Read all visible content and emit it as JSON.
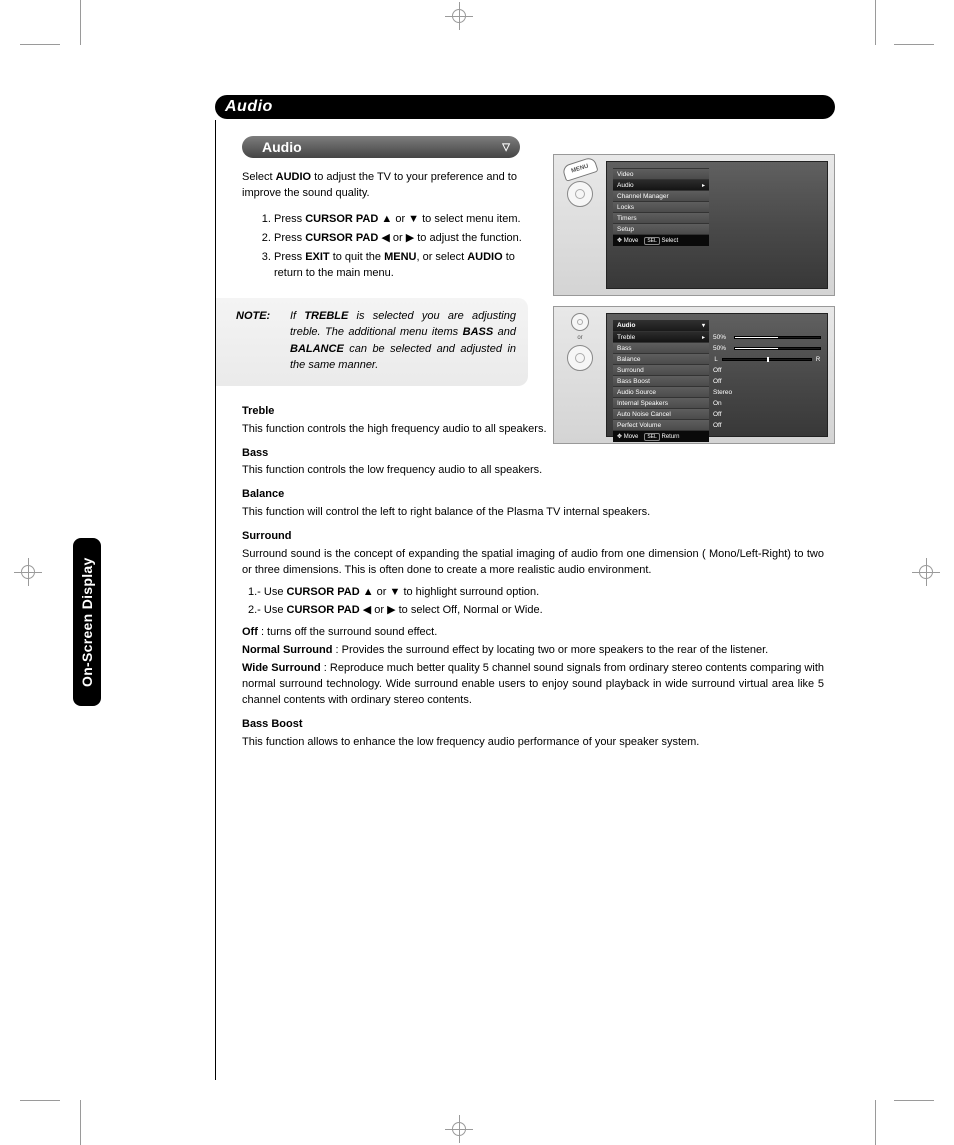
{
  "page": {
    "header": "Audio",
    "subheader": "Audio",
    "side_tab": "On-Screen Display"
  },
  "intro": {
    "pre": "Select ",
    "bold": "AUDIO",
    "post": " to adjust the TV to your preference and to improve the sound quality."
  },
  "steps": [
    {
      "pre": "Press ",
      "b1": "CURSOR PAD",
      "mid": "  ▲ or ▼ to select menu item."
    },
    {
      "pre": "Press ",
      "b1": "CURSOR PAD",
      "mid": " ◀ or ▶ to adjust the function."
    },
    {
      "pre": "Press ",
      "b1": "EXIT",
      "mid": " to quit the ",
      "b2": "MENU",
      "mid2": ", or select ",
      "b3": "AUDIO",
      "mid3": " to return to the main menu."
    }
  ],
  "note": {
    "label": "NOTE:",
    "text_pre": "If ",
    "b1": "TREBLE",
    "t1": "  is selected you are adjusting treble.  The additional menu items ",
    "b2": "BASS",
    "t2": " and ",
    "b3": "BALANCE",
    "t3": " can be selected and adjusted in the same manner."
  },
  "descriptions": [
    {
      "title": "Treble",
      "body": "This function controls the high frequency audio to all speakers."
    },
    {
      "title": "Bass",
      "body": "This function controls the low frequency audio to all speakers."
    },
    {
      "title": "Balance",
      "body": "This function will control the left to right balance of the Plasma TV internal speakers."
    },
    {
      "title": "Surround",
      "body": "Surround sound is the concept of expanding the spatial imaging of audio from one dimension ( Mono/Left-Right) to two or three dimensions. This is often done to create a more realistic audio environment."
    }
  ],
  "surround_steps": [
    {
      "n": "1.-",
      "pre": "  Use ",
      "b": "CURSOR PAD",
      "post": " ▲ or ▼   to highlight surround option."
    },
    {
      "n": "2.-",
      "pre": "  Use ",
      "b": "CURSOR PAD",
      "post": " ◀ or ▶  to select Off, Normal or Wide."
    }
  ],
  "surround_defs": [
    {
      "b": "Off",
      "t": " : turns off the surround sound effect."
    },
    {
      "b": "Normal Surround",
      "t": " :  Provides the surround effect by locating two or more speakers to the rear of the listener."
    },
    {
      "b": "Wide Surround",
      "t": " : Reproduce much better quality 5 channel sound signals from ordinary stereo contents comparing with normal surround technology. Wide surround enable users to enjoy sound playback in wide surround virtual area like 5 channel contents with ordinary stereo contents."
    }
  ],
  "bass_boost": {
    "title": "Bass Boost",
    "body": "This function allows to enhance the low frequency audio performance of your speaker system."
  },
  "osd1": {
    "menu_label": "MENU",
    "items": [
      "Video",
      "Audio",
      "Channel Manager",
      "Locks",
      "Timers",
      "Setup"
    ],
    "selected_index": 1,
    "footer_move": "Move",
    "footer_sel_key": "SEL",
    "footer_select": "Select"
  },
  "osd2": {
    "or": "or",
    "header": "Audio",
    "rows": [
      {
        "label": "Treble",
        "value": "50%",
        "type": "bar",
        "fill": 50
      },
      {
        "label": "Bass",
        "value": "50%",
        "type": "bar",
        "fill": 50
      },
      {
        "label": "Balance",
        "value": "",
        "type": "balance",
        "L": "L",
        "R": "R"
      },
      {
        "label": "Surround",
        "value": "Off",
        "type": "text"
      },
      {
        "label": "Bass Boost",
        "value": "Off",
        "type": "text"
      },
      {
        "label": "Audio Source",
        "value": "Stereo",
        "type": "text"
      },
      {
        "label": "Internal Speakers",
        "value": "On",
        "type": "text"
      },
      {
        "label": "Auto Noise Cancel",
        "value": "Off",
        "type": "text"
      },
      {
        "label": "Perfect Volume",
        "value": "Off",
        "type": "text"
      }
    ],
    "selected_index": 0,
    "footer_move": "Move",
    "footer_sel_key": "SEL",
    "footer_return": "Return"
  },
  "colors": {
    "black": "#000000",
    "grey_bar": "#5b5b5b",
    "panel_bg": "#dcdcdc",
    "tv_bg": "#4a4a4a",
    "menu_row": "#555555",
    "menu_sel": "#1a1a1a"
  }
}
